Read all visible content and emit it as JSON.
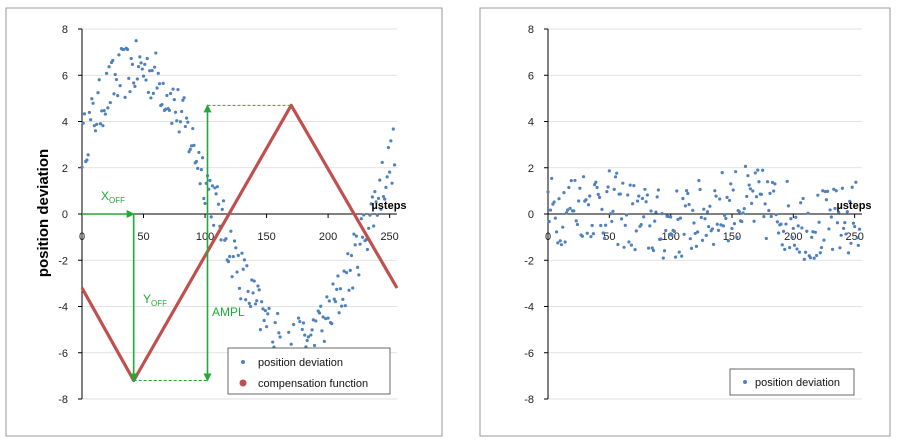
{
  "chart_data": [
    {
      "type": "scatter",
      "ylabel": "position deviation",
      "x_unit_label": "µsteps",
      "xlim": [
        0,
        256
      ],
      "ylim": [
        -8,
        8
      ],
      "x_ticks": [
        "0",
        "50",
        "100",
        "150",
        "200",
        "250"
      ],
      "y_ticks": [
        "8",
        "6",
        "4",
        "2",
        "0",
        "-2",
        "-4",
        "-6",
        "-8"
      ],
      "colors": {
        "deviation": "#4f81bd",
        "compensation": "#c0504d",
        "annotation": "#22a83a"
      },
      "legend_position": "bottom-right",
      "legend": [
        "position deviation",
        "compensation function"
      ],
      "series": [
        {
          "name": "position deviation",
          "marker": "dot",
          "curve": "sine plus noise",
          "x_range": [
            0,
            254
          ],
          "amplitude": 6.0,
          "offset": 0,
          "phase_peak_x": 45
        },
        {
          "name": "compensation function",
          "marker": "line",
          "curve": "triangle",
          "points": [
            [
              0,
              -3.2
            ],
            [
              42,
              -7.2
            ],
            [
              170,
              4.7
            ],
            [
              256,
              -3.2
            ]
          ]
        }
      ],
      "annotations": [
        {
          "label": "X",
          "subscript": "OFF",
          "x_from": 0,
          "x_to": 42,
          "y": 0
        },
        {
          "label": "Y",
          "subscript": "OFF",
          "x": 42,
          "y_from": 0,
          "y_to": -7.2
        },
        {
          "label": "AMPL",
          "x": 102,
          "y_from": -7.2,
          "y_to": 4.7
        }
      ]
    },
    {
      "type": "scatter",
      "ylabel": "",
      "x_unit_label": "µsteps",
      "xlim": [
        0,
        256
      ],
      "ylim": [
        -8,
        8
      ],
      "x_ticks": [
        "0",
        "50",
        "100",
        "150",
        "200",
        "250"
      ],
      "y_ticks": [
        "8",
        "6",
        "4",
        "2",
        "0",
        "-2",
        "-4",
        "-6",
        "-8"
      ],
      "legend_position": "bottom-right",
      "legend": [
        "position deviation"
      ],
      "series": [
        {
          "name": "position deviation",
          "marker": "dot",
          "curve": "noise around zero",
          "x_range": [
            0,
            254
          ],
          "spread": 1.6
        }
      ]
    }
  ]
}
